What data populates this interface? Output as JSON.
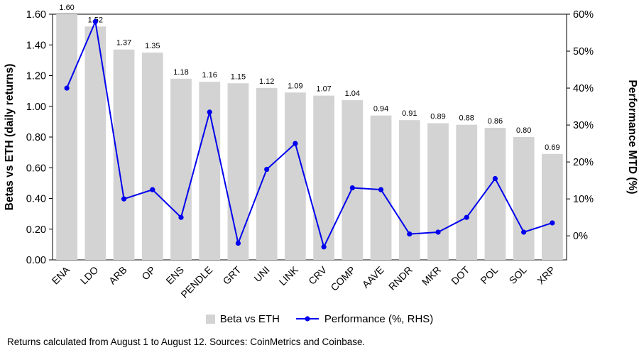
{
  "chart_data": {
    "type": "bar",
    "subtype": "bar-line-combo",
    "categories": [
      "ENA",
      "LDO",
      "ARB",
      "OP",
      "ENS",
      "PENDLE",
      "GRT",
      "UNI",
      "LINK",
      "CRV",
      "COMP",
      "AAVE",
      "RNDR",
      "MKR",
      "DOT",
      "POL",
      "SOL",
      "XRP"
    ],
    "series": [
      {
        "name": "Beta vs ETH",
        "type": "bar",
        "axis": "left",
        "color": "#d3d3d3",
        "values": [
          1.6,
          1.52,
          1.37,
          1.35,
          1.18,
          1.16,
          1.15,
          1.12,
          1.09,
          1.07,
          1.04,
          0.94,
          0.91,
          0.89,
          0.88,
          0.86,
          0.8,
          0.69
        ]
      },
      {
        "name": "Performance (%, RHS)",
        "type": "line",
        "axis": "right",
        "color": "#0000ee",
        "values": [
          40,
          58,
          10,
          12.5,
          5,
          33.5,
          -2,
          18,
          25,
          -3,
          13,
          12.5,
          0.5,
          1,
          5,
          15.5,
          1,
          3.5
        ]
      }
    ],
    "left_axis": {
      "label": "Betas vs ETH (daily returns)",
      "min": 0,
      "max": 1.6,
      "ticks": [
        0,
        0.2,
        0.4,
        0.6,
        0.8,
        1.0,
        1.2,
        1.4,
        1.6
      ]
    },
    "right_axis": {
      "label": "Performance MTD (%)",
      "min": -6.5,
      "max": 60,
      "ticks": [
        0,
        10,
        20,
        30,
        40,
        50,
        60
      ]
    },
    "bar_labels": [
      "1.60",
      "1.52",
      "1.37",
      "1.35",
      "1.18",
      "1.16",
      "1.15",
      "1.12",
      "1.09",
      "1.07",
      "1.04",
      "0.94",
      "0.91",
      "0.89",
      "0.88",
      "0.86",
      "0.80",
      "0.69"
    ],
    "legend": [
      {
        "label": "Beta vs ETH",
        "swatch": "bar"
      },
      {
        "label": "Performance (%, RHS)",
        "swatch": "line"
      }
    ],
    "footnote": "Returns calculated from August 1 to August 12. Sources: CoinMetrics and Coinbase.",
    "grid": false,
    "legend_position": "bottom-center"
  }
}
